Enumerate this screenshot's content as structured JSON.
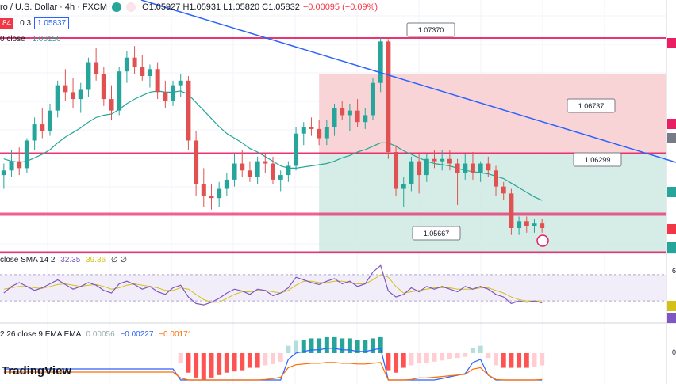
{
  "header": {
    "symbol": "ro / U.S. Dollar · 4h · FXCM",
    "ohlc": "O1.05927 H1.05931 L1.05820 C1.05832",
    "change": "−0.00095 (−0.09%)"
  },
  "quote": {
    "sell": "84",
    "spread": "0.3",
    "buy": "1.05837"
  },
  "ma_legend": {
    "label": "0 close",
    "value": "1.06156"
  },
  "price_callouts": [
    "1.07370",
    "1.06737",
    "1.06299",
    "1.05667"
  ],
  "rsi_legend": {
    "label": "close SMA 14 2",
    "rsi": "32.35",
    "sma": "39.36",
    "extra": "∅ ∅"
  },
  "macd_legend": {
    "label": "2 26 close 9 EMA EMA",
    "hist": "0.00056",
    "macd": "−0.00227",
    "signal": "−0.00171"
  },
  "logo": "TradingView",
  "right_axis": {
    "rsi_tick": "6",
    "macd_tick": "0"
  },
  "colors": {
    "up": "#26a69a",
    "down": "#e05252",
    "ma": "#26a69a",
    "trendline": "#2962ff",
    "level": "#e91e63",
    "rsi": "#7e57c2",
    "rsi_sma": "#d4c016",
    "macd": "#2962ff",
    "signal": "#ff6d00"
  },
  "chart_data": {
    "type": "candlestick",
    "candles": [
      [
        1.0618,
        1.0628,
        1.0606,
        1.0622
      ],
      [
        1.0622,
        1.064,
        1.0616,
        1.063
      ],
      [
        1.063,
        1.0642,
        1.0618,
        1.0624
      ],
      [
        1.0624,
        1.065,
        1.062,
        1.0648
      ],
      [
        1.0648,
        1.0668,
        1.064,
        1.0662
      ],
      [
        1.0662,
        1.0676,
        1.065,
        1.0656
      ],
      [
        1.0656,
        1.068,
        1.0652,
        1.0674
      ],
      [
        1.0674,
        1.07,
        1.0668,
        1.0696
      ],
      [
        1.0696,
        1.071,
        1.0682,
        1.069
      ],
      [
        1.069,
        1.0702,
        1.0676,
        1.0684
      ],
      [
        1.0684,
        1.0698,
        1.0672,
        1.0692
      ],
      [
        1.0692,
        1.072,
        1.0686,
        1.0716
      ],
      [
        1.0716,
        1.0728,
        1.07,
        1.0706
      ],
      [
        1.0706,
        1.0712,
        1.0678,
        1.0684
      ],
      [
        1.0684,
        1.0696,
        1.0666,
        1.0674
      ],
      [
        1.0674,
        1.0712,
        1.067,
        1.0708
      ],
      [
        1.0708,
        1.0726,
        1.0698,
        1.072
      ],
      [
        1.072,
        1.073,
        1.0706,
        1.0712
      ],
      [
        1.0712,
        1.0722,
        1.07,
        1.0704
      ],
      [
        1.0704,
        1.0714,
        1.0694,
        1.071
      ],
      [
        1.071,
        1.0716,
        1.0684,
        1.069
      ],
      [
        1.069,
        1.07,
        1.0676,
        1.0682
      ],
      [
        1.0682,
        1.07,
        1.0678,
        1.0696
      ],
      [
        1.0696,
        1.0706,
        1.0686,
        1.07
      ],
      [
        1.07,
        1.0704,
        1.064,
        1.0648
      ],
      [
        1.0648,
        1.0656,
        1.06,
        1.061
      ],
      [
        1.061,
        1.0624,
        1.059,
        1.06
      ],
      [
        1.06,
        1.061,
        1.0588,
        1.0598
      ],
      [
        1.0598,
        1.0612,
        1.059,
        1.0606
      ],
      [
        1.0606,
        1.062,
        1.06,
        1.0614
      ],
      [
        1.0614,
        1.0636,
        1.0608,
        1.0628
      ],
      [
        1.0628,
        1.064,
        1.0616,
        1.0622
      ],
      [
        1.0622,
        1.063,
        1.0612,
        1.0616
      ],
      [
        1.0616,
        1.0634,
        1.061,
        1.063
      ],
      [
        1.063,
        1.0636,
        1.062,
        1.0628
      ],
      [
        1.0628,
        1.0634,
        1.061,
        1.0614
      ],
      [
        1.0614,
        1.0622,
        1.0604,
        1.0618
      ],
      [
        1.0618,
        1.063,
        1.0612,
        1.0626
      ],
      [
        1.0626,
        1.066,
        1.0622,
        1.0654
      ],
      [
        1.0654,
        1.0664,
        1.0644,
        1.066
      ],
      [
        1.066,
        1.0668,
        1.0652,
        1.0658
      ],
      [
        1.0658,
        1.0666,
        1.0644,
        1.065
      ],
      [
        1.065,
        1.0666,
        1.0644,
        1.066
      ],
      [
        1.066,
        1.068,
        1.0652,
        1.0676
      ],
      [
        1.0676,
        1.0682,
        1.0666,
        1.067
      ],
      [
        1.067,
        1.068,
        1.0656,
        1.0674
      ],
      [
        1.0674,
        1.0684,
        1.066,
        1.0664
      ],
      [
        1.0664,
        1.0676,
        1.0658,
        1.067
      ],
      [
        1.067,
        1.0702,
        1.0666,
        1.0698
      ],
      [
        1.0698,
        1.0737,
        1.069,
        1.0734
      ],
      [
        1.0734,
        1.0736,
        1.0632,
        1.0638
      ],
      [
        1.0638,
        1.0644,
        1.06,
        1.0606
      ],
      [
        1.0606,
        1.0616,
        1.059,
        1.061
      ],
      [
        1.061,
        1.0634,
        1.0604,
        1.063
      ],
      [
        1.063,
        1.0636,
        1.0602,
        1.0618
      ],
      [
        1.0618,
        1.0636,
        1.0612,
        1.0632
      ],
      [
        1.0632,
        1.064,
        1.0624,
        1.063
      ],
      [
        1.063,
        1.064,
        1.0622,
        1.0632
      ],
      [
        1.0632,
        1.064,
        1.0622,
        1.0628
      ],
      [
        1.0628,
        1.0632,
        1.0592,
        1.062
      ],
      [
        1.062,
        1.0636,
        1.0614,
        1.0628
      ],
      [
        1.0628,
        1.0638,
        1.0614,
        1.062
      ],
      [
        1.062,
        1.063,
        1.0612,
        1.0628
      ],
      [
        1.0628,
        1.0634,
        1.0616,
        1.0622
      ],
      [
        1.0622,
        1.0626,
        1.06,
        1.0608
      ],
      [
        1.0608,
        1.0612,
        1.0596,
        1.0602
      ],
      [
        1.0602,
        1.0606,
        1.0566,
        1.0572
      ],
      [
        1.0572,
        1.0582,
        1.0566,
        1.0578
      ],
      [
        1.0578,
        1.0582,
        1.0568,
        1.0574
      ],
      [
        1.0574,
        1.058,
        1.0568,
        1.0576
      ],
      [
        1.0576,
        1.058,
        1.0568,
        1.0572
      ]
    ],
    "ma": [
      1.0632,
      1.063,
      1.0629,
      1.063,
      1.0633,
      1.0636,
      1.064,
      1.0646,
      1.0651,
      1.0655,
      1.0659,
      1.0664,
      1.0668,
      1.067,
      1.0671,
      1.0675,
      1.068,
      1.0684,
      1.0687,
      1.069,
      1.0691,
      1.069,
      1.069,
      1.0691,
      1.0688,
      1.0681,
      1.0674,
      1.0667,
      1.066,
      1.0654,
      1.065,
      1.0646,
      1.0641,
      1.0638,
      1.0634,
      1.063,
      1.0626,
      1.0624,
      1.0624,
      1.0625,
      1.0626,
      1.0627,
      1.0628,
      1.063,
      1.0633,
      1.0635,
      1.0638,
      1.064,
      1.0643,
      1.0646,
      1.0646,
      1.0643,
      1.0639,
      1.0636,
      1.0633,
      1.063,
      1.0628,
      1.0627,
      1.0626,
      1.0624,
      1.0622,
      1.0621,
      1.062,
      1.0619,
      1.0617,
      1.0615,
      1.0611,
      1.0607,
      1.0603,
      1.0599,
      1.0596
    ],
    "levels": [
      1.0737,
      1.0637,
      1.0584,
      1.0551
    ],
    "rsi": [
      42,
      52,
      58,
      52,
      46,
      50,
      56,
      62,
      55,
      48,
      52,
      58,
      54,
      46,
      42,
      56,
      60,
      55,
      48,
      52,
      44,
      40,
      50,
      54,
      36,
      26,
      24,
      28,
      34,
      42,
      48,
      45,
      40,
      48,
      46,
      38,
      42,
      50,
      66,
      62,
      58,
      55,
      60,
      64,
      56,
      60,
      52,
      56,
      74,
      84,
      45,
      36,
      40,
      50,
      44,
      52,
      48,
      52,
      48,
      44,
      52,
      48,
      52,
      48,
      40,
      36,
      26,
      30,
      28,
      30,
      27
    ],
    "rsi_sma": [
      48,
      50,
      52,
      52,
      50,
      49,
      52,
      55,
      56,
      54,
      52,
      54,
      55,
      52,
      48,
      50,
      54,
      56,
      54,
      52,
      50,
      46,
      46,
      50,
      48,
      40,
      32,
      28,
      28,
      34,
      40,
      44,
      44,
      46,
      46,
      44,
      42,
      46,
      54,
      60,
      60,
      58,
      58,
      60,
      60,
      58,
      56,
      56,
      62,
      70,
      66,
      52,
      42,
      44,
      46,
      48,
      50,
      50,
      50,
      48,
      48,
      48,
      50,
      50,
      46,
      42,
      36,
      32,
      30,
      30,
      30
    ],
    "macd_hist": [
      0,
      0,
      0,
      0,
      0,
      0,
      0,
      0,
      0,
      0,
      0,
      0,
      0,
      0,
      0,
      0,
      0,
      0,
      0,
      0,
      0,
      0,
      0,
      -0.0008,
      -0.0016,
      -0.002,
      -0.0022,
      -0.002,
      -0.0018,
      -0.0016,
      -0.0015,
      -0.0014,
      -0.0012,
      -0.0012,
      -0.001,
      -0.0009,
      -0.0007,
      0.0006,
      0.001,
      0.0011,
      0.0012,
      0.0012,
      0.0013,
      0.0013,
      0.0012,
      0.0012,
      0.0011,
      0.0011,
      0.0012,
      0.0013,
      -0.0014,
      -0.0016,
      -0.0012,
      -0.001,
      -0.0008,
      -0.0008,
      -0.0007,
      -0.0006,
      -0.0005,
      -0.0004,
      -0.0003,
      0.0004,
      0.0006,
      -0.0004,
      -0.001,
      -0.0012,
      -0.0012,
      -0.0012,
      -0.0012,
      -0.0011,
      -0.001
    ],
    "ylim_price": [
      1.055,
      1.077
    ]
  }
}
